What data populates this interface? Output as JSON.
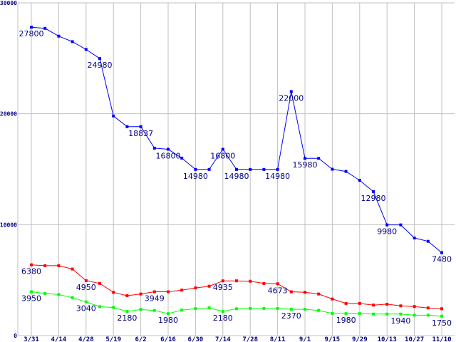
{
  "chart_data": {
    "type": "line",
    "title": "",
    "xlabel": "",
    "ylabel": "",
    "ylim": [
      0,
      30000
    ],
    "yticks": [
      "0",
      "10000",
      "20000",
      "30000"
    ],
    "ytick_values": [
      0,
      10000,
      20000,
      30000
    ],
    "xtick_labels": [
      "3/31",
      "4/14",
      "4/28",
      "5/19",
      "6/2",
      "6/16",
      "6/30",
      "7/14",
      "7/28",
      "8/11",
      "9/1",
      "9/15",
      "9/29",
      "10/13",
      "10/27",
      "11/10"
    ],
    "points_per_tick": 2,
    "grid": true,
    "series": [
      {
        "name": "blue",
        "color": "#0000ff",
        "values": [
          27800,
          27700,
          27000,
          26500,
          25800,
          24980,
          19800,
          18837,
          18837,
          16900,
          16800,
          16000,
          14980,
          14980,
          16800,
          14980,
          14980,
          14980,
          14980,
          22000,
          15980,
          15980,
          15000,
          14800,
          14000,
          12980,
          9980,
          9980,
          8800,
          8500,
          7480
        ],
        "labels": {
          "0": "27800",
          "5": "24980",
          "8": "18837",
          "10": "16800",
          "12": "14980",
          "14": "16800",
          "15": "14980",
          "18": "14980",
          "19": "22000",
          "20": "15980",
          "25": "12980",
          "26": "9980",
          "30": "7480"
        }
      },
      {
        "name": "red",
        "color": "#ff0000",
        "values": [
          6380,
          6300,
          6300,
          6000,
          4950,
          4700,
          3900,
          3600,
          3750,
          3949,
          3949,
          4100,
          4300,
          4450,
          4935,
          4935,
          4900,
          4700,
          4673,
          3950,
          3900,
          3750,
          3300,
          2900,
          2900,
          2750,
          2830,
          2680,
          2620,
          2490,
          2420
        ],
        "labels": {
          "0": "6380",
          "4": "4950",
          "9": "3949",
          "14": "4935",
          "18": "4673"
        }
      },
      {
        "name": "green",
        "color": "#00ff00",
        "values": [
          3950,
          3800,
          3700,
          3420,
          3040,
          2610,
          2530,
          2180,
          2350,
          2270,
          1980,
          2300,
          2430,
          2500,
          2180,
          2420,
          2450,
          2450,
          2450,
          2370,
          2370,
          2270,
          2000,
          1980,
          1980,
          1940,
          1940,
          1940,
          1840,
          1840,
          1750
        ],
        "labels": {
          "0": "3950",
          "4": "3040",
          "7": "2180",
          "10": "1980",
          "14": "2180",
          "19": "2370",
          "23": "1980",
          "27": "1940",
          "30": "1750"
        }
      }
    ]
  }
}
